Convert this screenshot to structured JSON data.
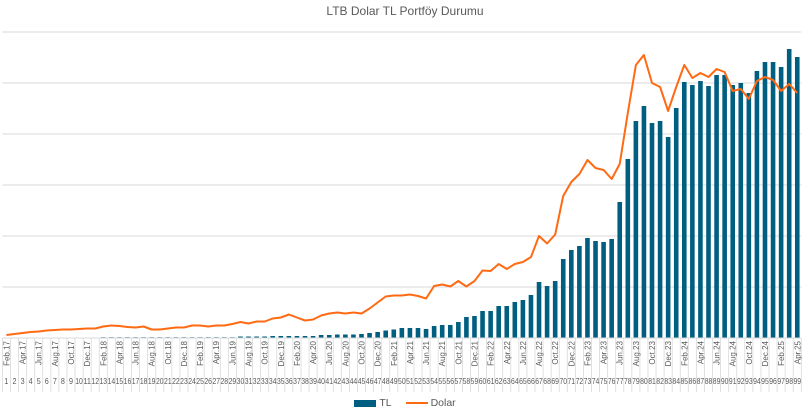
{
  "chart_data": {
    "type": "bar",
    "title": "LTB Dolar TL Portföy Durumu",
    "xlabel": "",
    "ylabel": "",
    "ylim": [
      0,
      612
    ],
    "y_gridlines": 6,
    "grid": true,
    "legend_position": "bottom",
    "x": [
      1,
      2,
      3,
      4,
      5,
      6,
      7,
      8,
      9,
      10,
      11,
      12,
      13,
      14,
      15,
      16,
      17,
      18,
      19,
      20,
      21,
      22,
      23,
      24,
      25,
      26,
      27,
      28,
      29,
      30,
      31,
      32,
      33,
      34,
      35,
      36,
      37,
      38,
      39,
      40,
      41,
      42,
      43,
      44,
      45,
      46,
      47,
      48,
      49,
      50,
      51,
      52,
      53,
      54,
      55,
      56,
      57,
      58,
      59,
      60,
      61,
      62,
      63,
      64,
      65,
      66,
      67,
      68,
      69,
      70,
      71,
      72,
      73,
      74,
      75,
      76,
      77,
      78,
      79,
      80,
      81,
      82,
      83,
      84,
      85,
      86,
      87,
      88,
      89,
      90,
      91,
      92,
      93,
      94,
      95,
      96,
      97,
      98,
      99
    ],
    "month_ticks": [
      "Feb.17",
      "Apr.17",
      "Jun.17",
      "Aug.17",
      "Oct.17",
      "Dec.17",
      "Feb.18",
      "Apr.18",
      "Jun.18",
      "Aug.18",
      "Oct.18",
      "Dec.18",
      "Feb.19",
      "Apr.19",
      "Jun.19",
      "Aug.19",
      "Oct.19",
      "Dec.19",
      "Feb.20",
      "Apr.20",
      "Jun.20",
      "Aug.20",
      "Oct.20",
      "Dec.20",
      "Feb.21",
      "Apr.21",
      "Jun.21",
      "Aug.21",
      "Oct.21",
      "Dec.21",
      "Feb.22",
      "Apr.22",
      "Jun.22",
      "Aug.22",
      "Oct.22",
      "Dec.22",
      "Feb.23",
      "Apr.23",
      "Jun.23",
      "Aug.23",
      "Oct.23",
      "Dec.23",
      "Feb.24",
      "Apr.24",
      "Jun.24",
      "Aug.24",
      "Oct.24",
      "Dec.24",
      "Feb.25",
      "Apr.25"
    ],
    "series": [
      {
        "name": "TL",
        "kind": "bar",
        "color": "#005F80",
        "values": [
          0,
          0,
          0,
          0,
          0,
          0,
          0,
          0,
          0,
          0,
          0,
          0,
          1,
          1,
          1,
          1,
          1,
          1,
          1,
          1,
          1,
          1,
          1,
          1,
          1,
          1,
          1,
          1,
          1,
          3,
          3,
          3,
          3,
          4,
          4,
          4,
          4,
          4,
          4,
          6,
          6,
          7,
          7,
          7,
          8,
          10,
          12,
          15,
          17,
          20,
          20,
          20,
          18,
          24,
          26,
          26,
          32,
          42,
          44,
          54,
          54,
          64,
          64,
          72,
          76,
          86,
          112,
          104,
          114,
          158,
          176,
          184,
          200,
          194,
          192,
          198,
          272,
          358,
          434,
          464,
          430,
          434,
          402,
          460,
          512,
          506,
          514,
          504,
          526,
          526,
          506,
          510,
          490,
          534,
          552,
          552,
          542,
          578,
          562
        ]
      },
      {
        "name": "Dolar",
        "kind": "line",
        "color": "#FF6A13",
        "values": [
          6,
          8,
          10,
          12,
          13,
          15,
          16,
          17,
          17,
          18,
          19,
          19,
          23,
          25,
          24,
          22,
          21,
          23,
          17,
          17,
          19,
          21,
          21,
          25,
          25,
          23,
          25,
          25,
          28,
          32,
          29,
          33,
          33,
          39,
          41,
          47,
          41,
          35,
          37,
          45,
          49,
          51,
          49,
          51,
          49,
          59,
          71,
          83,
          85,
          85,
          87,
          84,
          79,
          104,
          107,
          103,
          114,
          103,
          114,
          135,
          134,
          148,
          138,
          148,
          152,
          162,
          204,
          189,
          207,
          284,
          312,
          328,
          356,
          340,
          336,
          318,
          348,
          450,
          546,
          566,
          510,
          502,
          454,
          502,
          546,
          520,
          530,
          522,
          538,
          532,
          494,
          498,
          478,
          514,
          522,
          516,
          494,
          508,
          490
        ]
      }
    ]
  }
}
